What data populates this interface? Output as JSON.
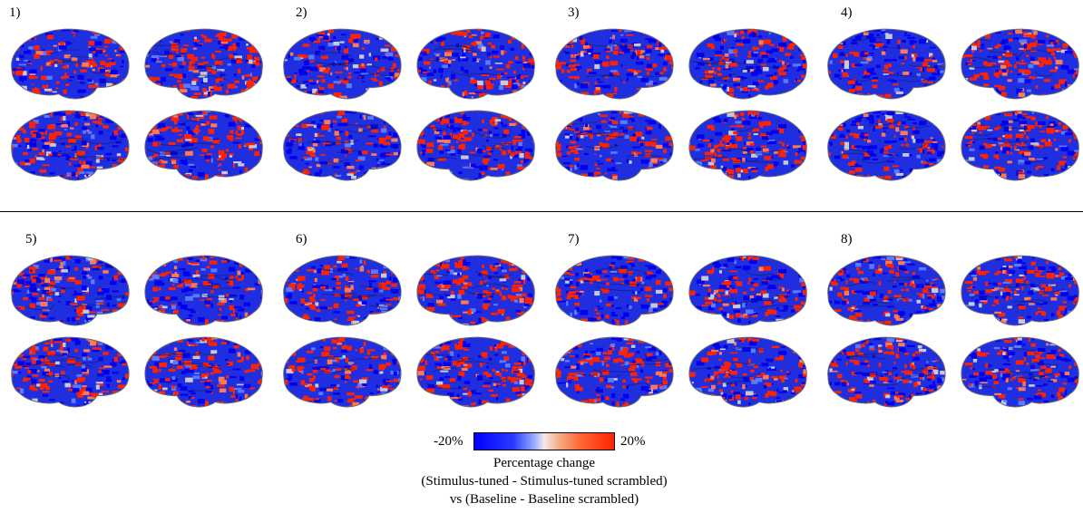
{
  "panels": [
    {
      "label": "1)"
    },
    {
      "label": "2)"
    },
    {
      "label": "3)"
    },
    {
      "label": "4)"
    },
    {
      "label": "5)"
    },
    {
      "label": "6)"
    },
    {
      "label": "7)"
    },
    {
      "label": "8)"
    }
  ],
  "colorbar": {
    "min_label": "-20%",
    "max_label": "20%",
    "colors": {
      "low": "#0000ff",
      "mid": "#f5e6ee",
      "high": "#ff2200"
    }
  },
  "caption": {
    "line1": "Percentage change",
    "line2": "(Stimulus-tuned - Stimulus-tuned scrambled)",
    "line3": "vs (Baseline -  Baseline scrambled)"
  }
}
